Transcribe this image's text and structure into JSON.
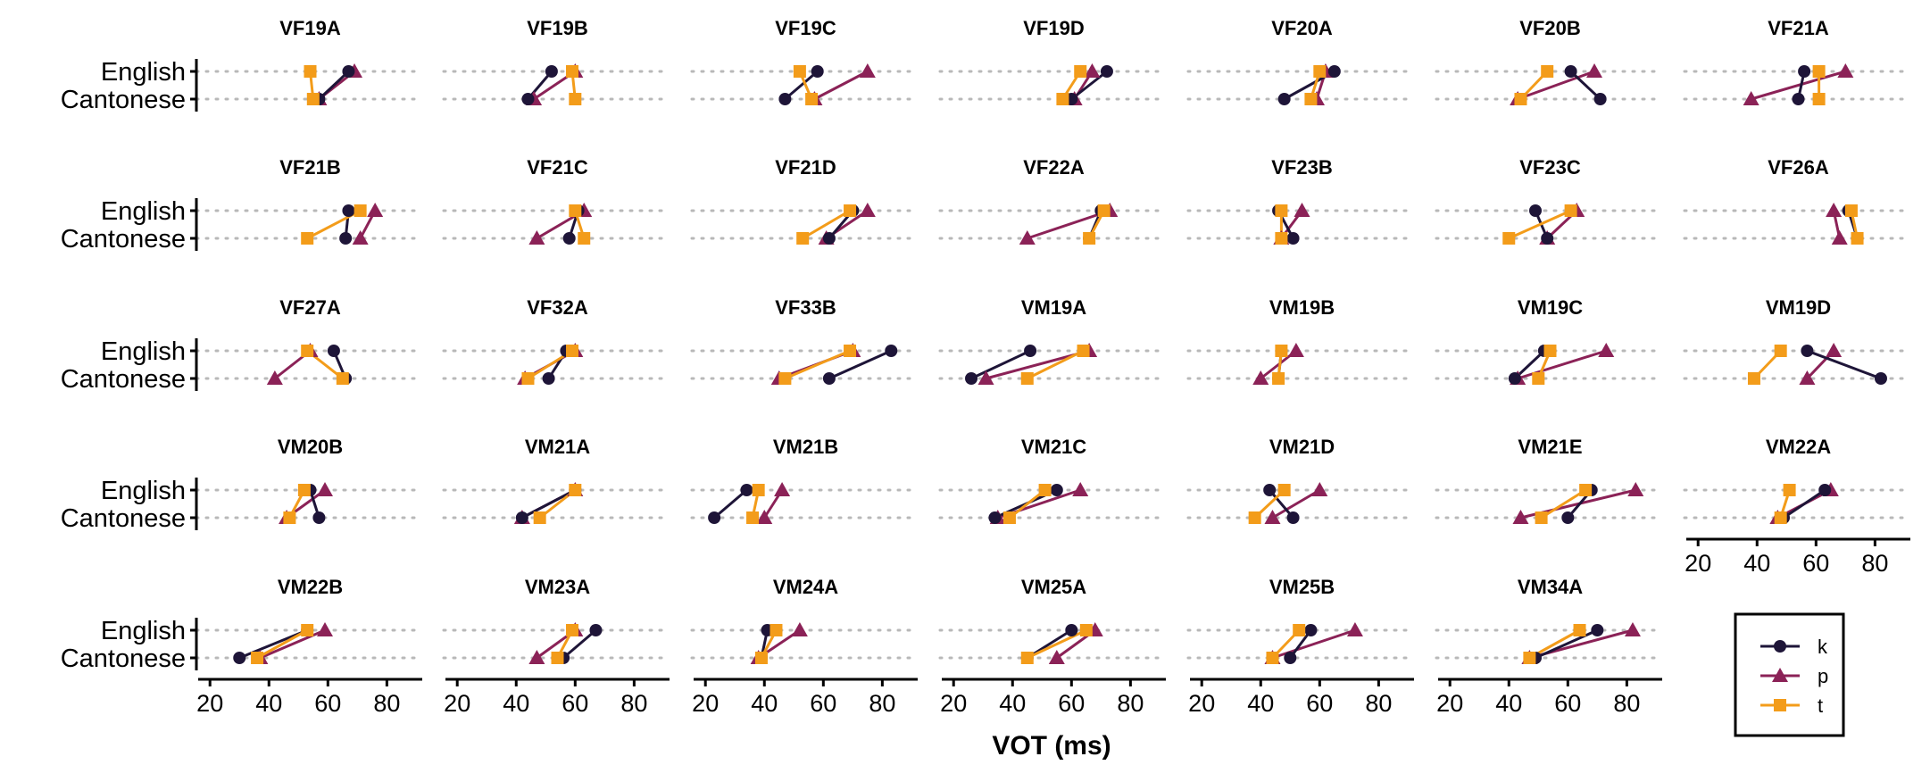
{
  "chart_data": {
    "type": "dot-line",
    "xlabel": "VOT (ms)",
    "xlim": [
      16,
      92
    ],
    "x_ticks": [
      20,
      40,
      60,
      80
    ],
    "y_categories": [
      "English",
      "Cantonese"
    ],
    "grid": "dotted horizontal",
    "legend_position": "bottom-right",
    "series": [
      {
        "name": "k",
        "marker": "circle",
        "color": "#1e1538"
      },
      {
        "name": "p",
        "marker": "triangle",
        "color": "#8b2257"
      },
      {
        "name": "t",
        "marker": "square",
        "color": "#f39c1a"
      }
    ],
    "panels": [
      {
        "title": "VF19A",
        "English": {
          "k": 67,
          "p": 69,
          "t": 54
        },
        "Cantonese": {
          "k": 57,
          "p": 57,
          "t": 55
        }
      },
      {
        "title": "VF19B",
        "English": {
          "k": 52,
          "p": 60,
          "t": 59
        },
        "Cantonese": {
          "k": 44,
          "p": 46,
          "t": 60
        }
      },
      {
        "title": "VF19C",
        "English": {
          "k": 58,
          "p": 75,
          "t": 52
        },
        "Cantonese": {
          "k": 47,
          "p": 57,
          "t": 56
        }
      },
      {
        "title": "VF19D",
        "English": {
          "k": 72,
          "p": 67,
          "t": 63
        },
        "Cantonese": {
          "k": 60,
          "p": 61,
          "t": 57
        }
      },
      {
        "title": "VF20A",
        "English": {
          "k": 65,
          "p": 62,
          "t": 60
        },
        "Cantonese": {
          "k": 48,
          "p": 59,
          "t": 57
        }
      },
      {
        "title": "VF20B",
        "English": {
          "k": 61,
          "p": 69,
          "t": 53
        },
        "Cantonese": {
          "k": 71,
          "p": 43,
          "t": 44
        }
      },
      {
        "title": "VF21A",
        "English": {
          "k": 56,
          "p": 70,
          "t": 61
        },
        "Cantonese": {
          "k": 54,
          "p": 38,
          "t": 61
        }
      },
      {
        "title": "VF21B",
        "English": {
          "k": 67,
          "p": 76,
          "t": 71
        },
        "Cantonese": {
          "k": 66,
          "p": 71,
          "t": 53
        }
      },
      {
        "title": "VF21C",
        "English": {
          "k": 61,
          "p": 63,
          "t": 60
        },
        "Cantonese": {
          "k": 58,
          "p": 47,
          "t": 63
        }
      },
      {
        "title": "VF21D",
        "English": {
          "k": 70,
          "p": 75,
          "t": 69
        },
        "Cantonese": {
          "k": 62,
          "p": 61,
          "t": 53
        }
      },
      {
        "title": "VF22A",
        "English": {
          "k": 70,
          "p": 73,
          "t": 71
        },
        "Cantonese": {
          "k": 66,
          "p": 45,
          "t": 66
        }
      },
      {
        "title": "VF23B",
        "English": {
          "k": 46,
          "p": 54,
          "t": 47
        },
        "Cantonese": {
          "k": 51,
          "p": 47,
          "t": 47
        }
      },
      {
        "title": "VF23C",
        "English": {
          "k": 49,
          "p": 63,
          "t": 61
        },
        "Cantonese": {
          "k": 53,
          "p": 53,
          "t": 40
        }
      },
      {
        "title": "VF26A",
        "English": {
          "k": 71,
          "p": 66,
          "t": 72
        },
        "Cantonese": {
          "k": 74,
          "p": 68,
          "t": 74
        }
      },
      {
        "title": "VF27A",
        "English": {
          "k": 62,
          "p": 54,
          "t": 53
        },
        "Cantonese": {
          "k": 66,
          "p": 42,
          "t": 65
        }
      },
      {
        "title": "VF32A",
        "English": {
          "k": 57,
          "p": 60,
          "t": 59
        },
        "Cantonese": {
          "k": 51,
          "p": 43,
          "t": 44
        }
      },
      {
        "title": "VF33B",
        "English": {
          "k": 83,
          "p": 70,
          "t": 69
        },
        "Cantonese": {
          "k": 62,
          "p": 45,
          "t": 47
        }
      },
      {
        "title": "VM19A",
        "English": {
          "k": 46,
          "p": 66,
          "t": 64
        },
        "Cantonese": {
          "k": 26,
          "p": 31,
          "t": 45
        }
      },
      {
        "title": "VM19B",
        "English": {
          "k": 47,
          "p": 52,
          "t": 47
        },
        "Cantonese": {
          "k": 46,
          "p": 40,
          "t": 46
        }
      },
      {
        "title": "VM19C",
        "English": {
          "k": 52,
          "p": 73,
          "t": 54
        },
        "Cantonese": {
          "k": 42,
          "p": 43,
          "t": 50
        }
      },
      {
        "title": "VM19D",
        "English": {
          "k": 57,
          "p": 66,
          "t": 48
        },
        "Cantonese": {
          "k": 82,
          "p": 57,
          "t": 39
        }
      },
      {
        "title": "VM20B",
        "English": {
          "k": 54,
          "p": 59,
          "t": 52
        },
        "Cantonese": {
          "k": 57,
          "p": 46,
          "t": 47
        }
      },
      {
        "title": "VM21A",
        "English": {
          "k": 60,
          "p": 60,
          "t": 60
        },
        "Cantonese": {
          "k": 42,
          "p": 42,
          "t": 48
        }
      },
      {
        "title": "VM21B",
        "English": {
          "k": 34,
          "p": 46,
          "t": 38
        },
        "Cantonese": {
          "k": 23,
          "p": 40,
          "t": 36
        }
      },
      {
        "title": "VM21C",
        "English": {
          "k": 55,
          "p": 63,
          "t": 51
        },
        "Cantonese": {
          "k": 34,
          "p": 35,
          "t": 39
        }
      },
      {
        "title": "VM21D",
        "English": {
          "k": 43,
          "p": 60,
          "t": 48
        },
        "Cantonese": {
          "k": 51,
          "p": 44,
          "t": 38
        }
      },
      {
        "title": "VM21E",
        "English": {
          "k": 68,
          "p": 83,
          "t": 66
        },
        "Cantonese": {
          "k": 60,
          "p": 44,
          "t": 51
        }
      },
      {
        "title": "VM22A",
        "English": {
          "k": 63,
          "p": 65,
          "t": 51
        },
        "Cantonese": {
          "k": 49,
          "p": 47,
          "t": 48
        }
      },
      {
        "title": "VM22B",
        "English": {
          "k": 53,
          "p": 59,
          "t": 53
        },
        "Cantonese": {
          "k": 30,
          "p": 37,
          "t": 36
        }
      },
      {
        "title": "VM23A",
        "English": {
          "k": 67,
          "p": 60,
          "t": 59
        },
        "Cantonese": {
          "k": 56,
          "p": 47,
          "t": 54
        }
      },
      {
        "title": "VM24A",
        "English": {
          "k": 41,
          "p": 52,
          "t": 44
        },
        "Cantonese": {
          "k": 39,
          "p": 38,
          "t": 39
        }
      },
      {
        "title": "VM25A",
        "English": {
          "k": 60,
          "p": 68,
          "t": 65
        },
        "Cantonese": {
          "k": 45,
          "p": 55,
          "t": 45
        }
      },
      {
        "title": "VM25B",
        "English": {
          "k": 57,
          "p": 72,
          "t": 53
        },
        "Cantonese": {
          "k": 50,
          "p": 44,
          "t": 44
        }
      },
      {
        "title": "VM34A",
        "English": {
          "k": 70,
          "p": 82,
          "t": 64
        },
        "Cantonese": {
          "k": 49,
          "p": 47,
          "t": 47
        }
      }
    ]
  }
}
